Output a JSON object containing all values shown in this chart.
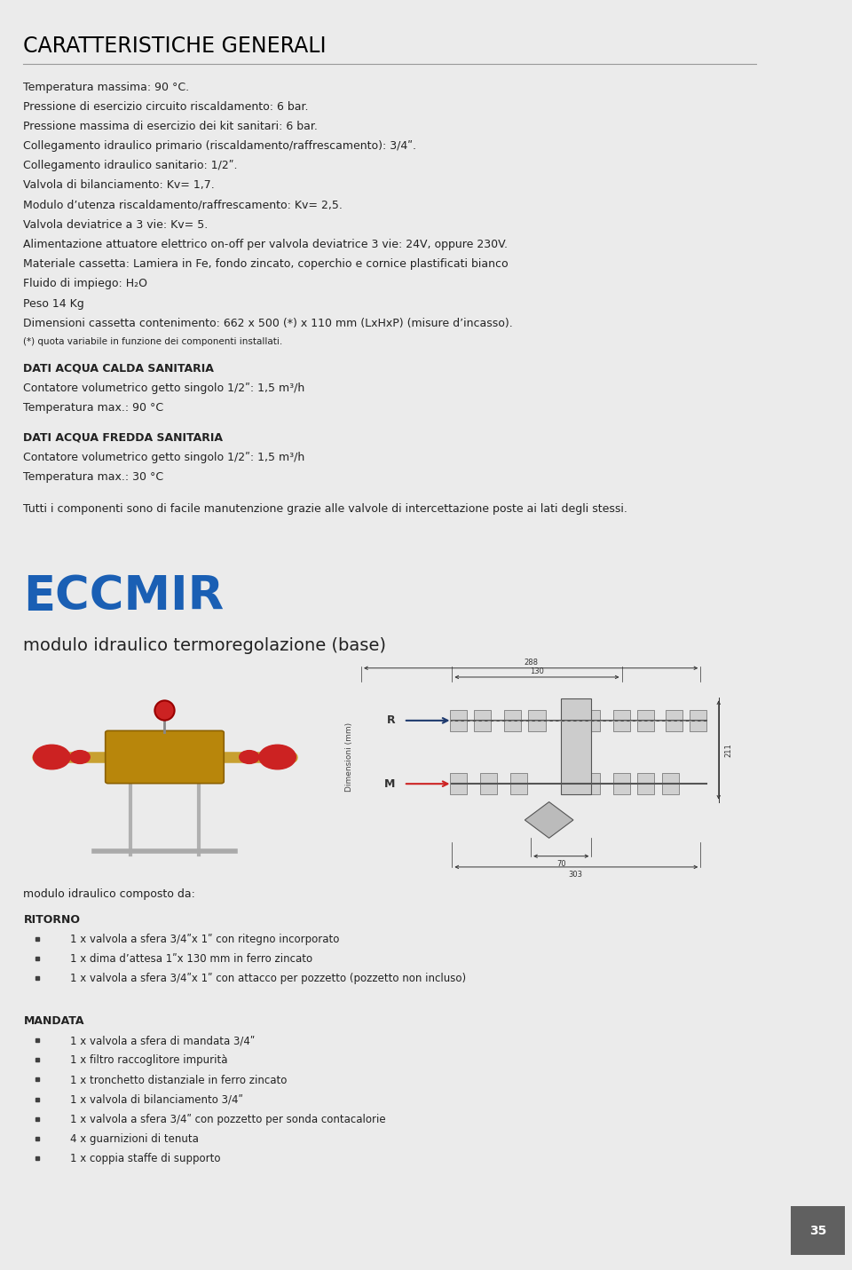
{
  "page_bg": "#ebebeb",
  "content_bg": "#ffffff",
  "title_generali": "CARATTERISTICHE GENERALI",
  "title_generali_fontsize": 17,
  "title_generali_color": "#000000",
  "generali_lines": [
    "Temperatura massima: 90 °C.",
    "Pressione di esercizio circuito riscaldamento: 6 bar.",
    "Pressione massima di esercizio dei kit sanitari: 6 bar.",
    "Collegamento idraulico primario (riscaldamento/raffrescamento): 3/4ʺ.",
    "Collegamento idraulico sanitario: 1/2ʺ.",
    "Valvola di bilanciamento: Kv= 1,7.",
    "Modulo d’utenza riscaldamento/raffrescamento: Kv= 2,5.",
    "Valvola deviatrice a 3 vie: Kv= 5.",
    "Alimentazione attuatore elettrico on-off per valvola deviatrice 3 vie: 24V, oppure 230V.",
    "Materiale cassetta: Lamiera in Fe, fondo zincato, coperchio e cornice plastificati bianco",
    "Fluido di impiego: H₂O",
    "Peso 14 Kg",
    "Dimensioni cassetta contenimento: 662 x 500 (*) x 110 mm (LxHxP) (misure d’incasso).",
    "(*) quota variabile in funzione dei componenti installati."
  ],
  "small_line_index": 13,
  "section_dati_calda_title": "DATI ACQUA CALDA SANITARIA",
  "section_dati_calda_lines": [
    "Contatore volumetrico getto singolo 1/2ʺ: 1,5 m³/h",
    "Temperatura max.: 90 °C"
  ],
  "section_dati_fredda_title": "DATI ACQUA FREDDA SANITARIA",
  "section_dati_fredda_lines": [
    "Contatore volumetrico getto singolo 1/2ʺ: 1,5 m³/h",
    "Temperatura max.: 30 °C"
  ],
  "footer_note": "Tutti i componenti sono di facile manutenzione grazie alle valvole di intercettazione poste ai lati degli stessi.",
  "eccmir_title": "ECCMIR",
  "eccmir_subtitle": "modulo idraulico termoregolazione (base)",
  "eccmir_title_color": "#1a5fb4",
  "module_composto": "modulo idraulico composto da:",
  "ritorno_title": "RITORNO",
  "ritorno_items": [
    "1 x valvola a sfera 3/4ʺx 1ʺ con ritegno incorporato",
    "1 x dima d’attesa 1ʺx 130 mm in ferro zincato",
    "1 x valvola a sfera 3/4ʺx 1ʺ con attacco per pozzetto (pozzetto non incluso)"
  ],
  "mandata_title": "MANDATA",
  "mandata_items": [
    "1 x valvola a sfera di mandata 3/4ʺ",
    "1 x filtro raccoglitore impurità",
    "1 x tronchetto distanziale in ferro zincato",
    "1 x valvola di bilanciamento 3/4ʺ",
    "1 x valvola a sfera 3/4ʺ con pozzetto per sonda contacalorie",
    "4 x guarnizioni di tenuta",
    "1 x coppia staffe di supporto"
  ],
  "page_number": "35",
  "line_color": "#999999",
  "bullet_color": "#404040",
  "text_color": "#222222",
  "body_fontsize": 9.0,
  "small_fontsize": 7.5,
  "section_title_fontsize": 9.0,
  "list_fontsize": 8.5
}
